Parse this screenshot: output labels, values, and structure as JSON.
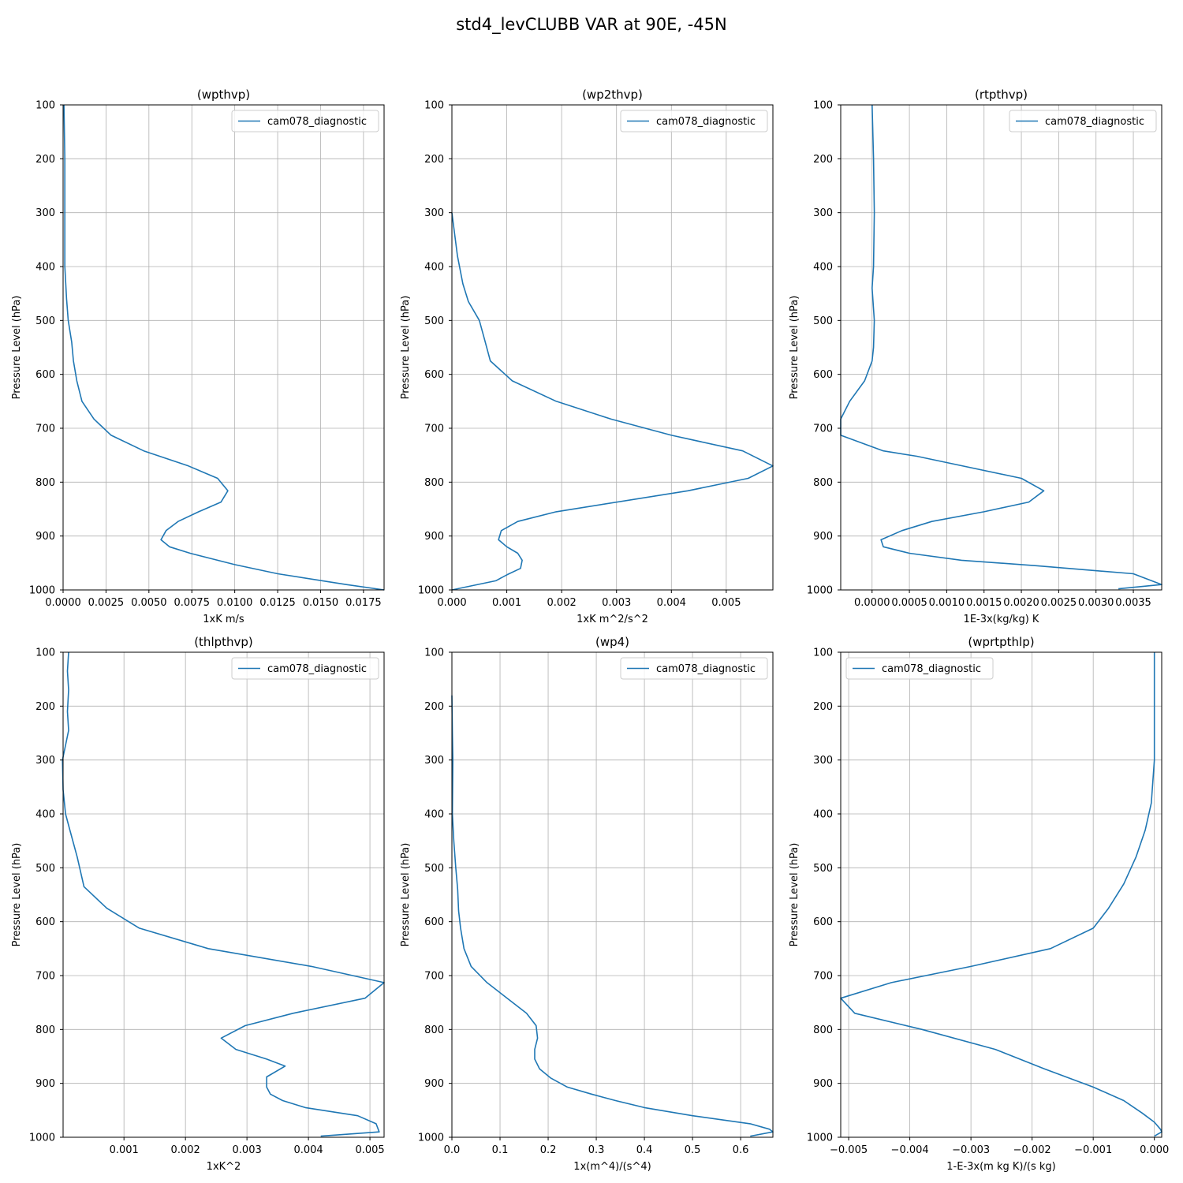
{
  "suptitle": "std4_levCLUBB VAR at 90E, -45N",
  "chart_data": [
    {
      "type": "line",
      "title": "(wpthvp)",
      "xlabel": "1xK m/s",
      "ylabel": "Pressure Level (hPa)",
      "xlim": [
        0,
        0.0187
      ],
      "ylim": [
        1000,
        100
      ],
      "xticks": [
        0,
        0.0025,
        0.005,
        0.0075,
        0.01,
        0.0125,
        0.015,
        0.0175
      ],
      "xtick_labels": [
        "0.0000",
        "0.0025",
        "0.0050",
        "0.0075",
        "0.0100",
        "0.0125",
        "0.0150",
        "0.0175"
      ],
      "yticks": [
        100,
        200,
        300,
        400,
        500,
        600,
        700,
        800,
        900,
        1000
      ],
      "grid": true,
      "legend": "upper right",
      "series": [
        {
          "name": "cam078_diagnostic",
          "color": "#1f77b4",
          "x": [
            5e-05,
            0.0001,
            0.0001,
            0.0001,
            0.0002,
            0.0003,
            0.0005,
            0.0006,
            0.0008,
            0.0011,
            0.0018,
            0.0028,
            0.0047,
            0.0073,
            0.009,
            0.0096,
            0.0092,
            0.0079,
            0.0067,
            0.006,
            0.0057,
            0.0062,
            0.0074,
            0.01,
            0.0125,
            0.0165,
            0.0187
          ],
          "y": [
            100,
            200,
            300,
            400,
            460,
            500,
            540,
            575,
            612,
            650,
            683,
            713,
            742,
            770,
            793,
            816,
            837,
            855,
            873,
            890,
            907,
            920,
            932,
            953,
            970,
            990,
            1000
          ]
        }
      ]
    },
    {
      "type": "line",
      "title": "(wp2thvp)",
      "xlabel": "1xK m^2/s^2",
      "ylabel": "Pressure Level (hPa)",
      "xlim": [
        0,
        0.00585
      ],
      "ylim": [
        1000,
        100
      ],
      "xticks": [
        0,
        0.001,
        0.002,
        0.003,
        0.004,
        0.005
      ],
      "xtick_labels": [
        "0.000",
        "0.001",
        "0.002",
        "0.003",
        "0.004",
        "0.005"
      ],
      "yticks": [
        100,
        200,
        300,
        400,
        500,
        600,
        700,
        800,
        900,
        1000
      ],
      "grid": true,
      "legend": "upper right",
      "series": [
        {
          "name": "cam078_diagnostic",
          "color": "#1f77b4",
          "x": [
            0.0,
            0.0001,
            0.0002,
            0.0003,
            0.0005,
            0.0006,
            0.0007,
            0.0011,
            0.0019,
            0.0029,
            0.004,
            0.0053,
            0.00585,
            0.0054,
            0.0043,
            0.0019,
            0.0012,
            0.0009,
            0.00085,
            0.001,
            0.0012,
            0.00128,
            0.00125,
            0.001,
            0.0008,
            0.0
          ],
          "y": [
            300,
            380,
            432,
            465,
            500,
            537,
            575,
            612,
            650,
            683,
            713,
            742,
            770,
            793,
            816,
            855,
            873,
            890,
            907,
            920,
            932,
            945,
            960,
            972,
            983,
            1000
          ]
        }
      ]
    },
    {
      "type": "line",
      "title": "(rtpthvp)",
      "xlabel": "1E-3x(kg/kg) K",
      "ylabel": "Pressure Level (hPa)",
      "xlim": [
        -0.00042,
        0.00388
      ],
      "ylim": [
        1000,
        100
      ],
      "xticks": [
        0,
        0.0005,
        0.001,
        0.0015,
        0.002,
        0.0025,
        0.003,
        0.0035
      ],
      "xtick_labels": [
        "0.0000",
        "0.0005",
        "0.0010",
        "0.0015",
        "0.0020",
        "0.0025",
        "0.0030",
        "0.0035"
      ],
      "yticks": [
        100,
        200,
        300,
        400,
        500,
        600,
        700,
        800,
        900,
        1000
      ],
      "grid": true,
      "legend": "upper right",
      "series": [
        {
          "name": "cam078_diagnostic",
          "color": "#1f77b4",
          "x": [
            0.0,
            2e-05,
            3e-05,
            2e-05,
            0.0,
            3e-05,
            2e-05,
            0.0,
            -0.0001,
            -0.0003,
            -0.00042,
            -0.00042,
            0.00015,
            0.0006,
            0.002,
            0.0023,
            0.0021,
            0.0015,
            0.0008,
            0.0004,
            0.00012,
            0.00015,
            0.0005,
            0.0012,
            0.0022,
            0.0035,
            0.00388,
            0.0033
          ],
          "y": [
            100,
            200,
            300,
            400,
            440,
            500,
            550,
            575,
            612,
            650,
            683,
            713,
            742,
            752,
            793,
            816,
            837,
            855,
            873,
            890,
            907,
            920,
            932,
            945,
            955,
            970,
            990,
            998
          ]
        }
      ]
    },
    {
      "type": "line",
      "title": "(thlpthvp)",
      "xlabel": "1xK^2",
      "ylabel": "Pressure Level (hPa)",
      "xlim": [
        1e-05,
        0.00523
      ],
      "ylim": [
        1000,
        100
      ],
      "xticks": [
        0.001,
        0.002,
        0.003,
        0.004,
        0.005
      ],
      "xtick_labels": [
        "0.001",
        "0.002",
        "0.003",
        "0.004",
        "0.005"
      ],
      "yticks": [
        100,
        200,
        300,
        400,
        500,
        600,
        700,
        800,
        900,
        1000
      ],
      "grid": true,
      "legend": "upper right",
      "series": [
        {
          "name": "cam078_diagnostic",
          "color": "#1f77b4",
          "x": [
            0.0001,
            8e-05,
            0.0001,
            8e-05,
            0.0001,
            0.0,
            1e-05,
            5e-05,
            0.00012,
            0.00024,
            0.00035,
            0.00072,
            0.00125,
            0.00237,
            0.00405,
            0.00523,
            0.00492,
            0.00375,
            0.00297,
            0.00258,
            0.00282,
            0.00332,
            0.00362,
            0.00332,
            0.00332,
            0.00338,
            0.00358,
            0.00395,
            0.0048,
            0.0051,
            0.00515,
            0.0042
          ],
          "y": [
            100,
            135,
            170,
            210,
            245,
            300,
            355,
            400,
            430,
            480,
            535,
            575,
            612,
            650,
            683,
            713,
            742,
            770,
            793,
            816,
            837,
            855,
            868,
            888,
            907,
            920,
            932,
            945,
            960,
            975,
            990,
            998
          ]
        }
      ]
    },
    {
      "type": "line",
      "title": "(wp4)",
      "xlabel": "1x(m^4)/(s^4)",
      "ylabel": "Pressure Level (hPa)",
      "xlim": [
        0,
        0.667
      ],
      "ylim": [
        1000,
        100
      ],
      "xticks": [
        0,
        0.1,
        0.2,
        0.3,
        0.4,
        0.5,
        0.6
      ],
      "xtick_labels": [
        "0.0",
        "0.1",
        "0.2",
        "0.3",
        "0.4",
        "0.5",
        "0.6"
      ],
      "yticks": [
        100,
        200,
        300,
        400,
        500,
        600,
        700,
        800,
        900,
        1000
      ],
      "grid": true,
      "legend": "upper right",
      "series": [
        {
          "name": "cam078_diagnostic",
          "color": "#1f77b4",
          "x": [
            0.0,
            0.001,
            0.002,
            0.001,
            0.004,
            0.008,
            0.012,
            0.014,
            0.018,
            0.025,
            0.04,
            0.073,
            0.155,
            0.175,
            0.178,
            0.172,
            0.172,
            0.182,
            0.205,
            0.24,
            0.29,
            0.34,
            0.4,
            0.5,
            0.62,
            0.66,
            0.667,
            0.62
          ],
          "y": [
            180,
            250,
            300,
            400,
            450,
            500,
            540,
            580,
            612,
            650,
            683,
            713,
            770,
            793,
            816,
            837,
            855,
            873,
            890,
            907,
            920,
            932,
            945,
            960,
            975,
            985,
            990,
            998
          ]
        }
      ]
    },
    {
      "type": "line",
      "title": "(wprtpthlp)",
      "xlabel": "1-E-3x(m kg K)/(s kg)",
      "ylabel": "Pressure Level (hPa)",
      "xlim": [
        -0.00513,
        0.00012
      ],
      "ylim": [
        1000,
        100
      ],
      "xticks": [
        -0.005,
        -0.004,
        -0.003,
        -0.002,
        -0.001,
        0.0
      ],
      "xtick_labels": [
        "−0.005",
        "−0.004",
        "−0.003",
        "−0.002",
        "−0.001",
        "0.000"
      ],
      "yticks": [
        100,
        200,
        300,
        400,
        500,
        600,
        700,
        800,
        900,
        1000
      ],
      "grid": true,
      "legend": "upper left",
      "series": [
        {
          "name": "cam078_diagnostic",
          "color": "#1f77b4",
          "x": [
            0.0,
            0.0,
            0.0,
            -5e-05,
            -0.00015,
            -0.0003,
            -0.0005,
            -0.00075,
            -0.001,
            -0.0017,
            -0.003,
            -0.0043,
            -0.00513,
            -0.0049,
            -0.0038,
            -0.0026,
            -0.0018,
            -0.001,
            -0.0005,
            -0.0002,
            0.0,
            0.0001,
            0.00012,
            0.0
          ],
          "y": [
            100,
            200,
            300,
            380,
            430,
            480,
            530,
            575,
            612,
            650,
            683,
            713,
            742,
            770,
            800,
            837,
            873,
            907,
            932,
            955,
            972,
            985,
            990,
            998
          ]
        }
      ]
    }
  ]
}
